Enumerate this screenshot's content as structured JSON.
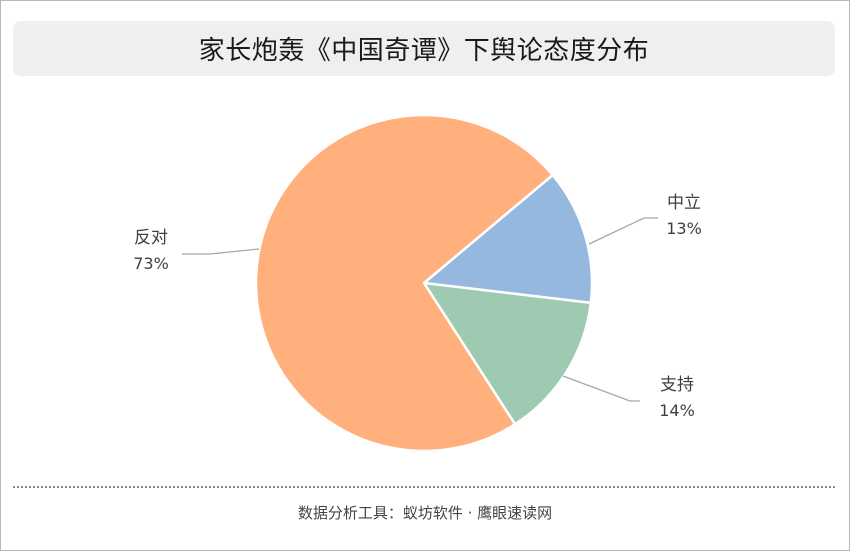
{
  "chart_data": {
    "type": "pie",
    "title": "家长炮轰《中国奇谭》下舆论态度分布",
    "slices": [
      {
        "label": "中立",
        "value": 13,
        "value_text": "13%",
        "color": "#95b8de"
      },
      {
        "label": "支持",
        "value": 14,
        "value_text": "14%",
        "color": "#9dcab0"
      },
      {
        "label": "反对",
        "value": 73,
        "value_text": "73%",
        "color": "#ffb07c"
      }
    ],
    "start_angle_deg": -40,
    "direction": "clockwise",
    "legend": "none",
    "data_labels": "outside with leader lines"
  },
  "footer": {
    "source_text": "数据分析工具：蚁坊软件 · 鹰眼速读网"
  }
}
